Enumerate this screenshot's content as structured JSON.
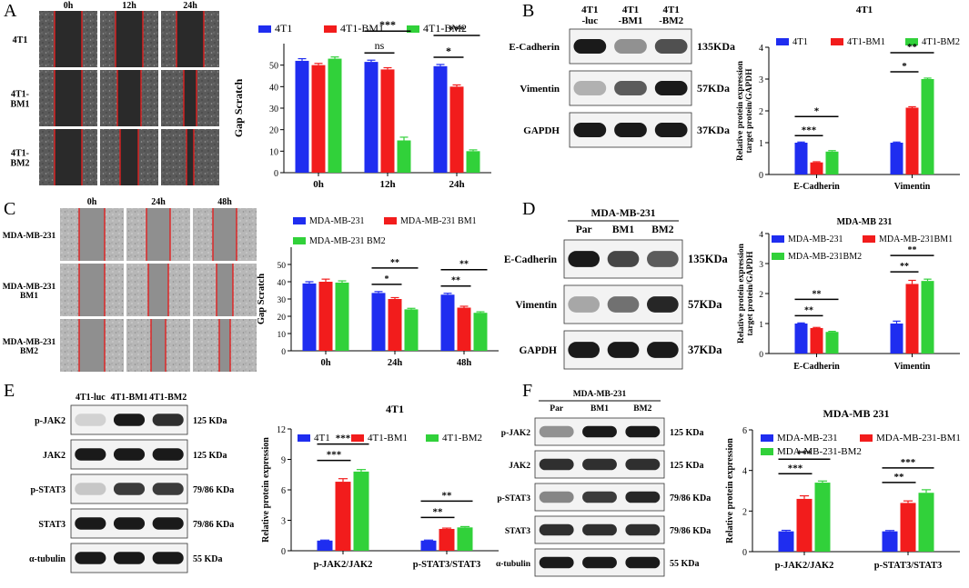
{
  "panel_letters": [
    "A",
    "B",
    "C",
    "D",
    "E",
    "F"
  ],
  "colors": {
    "blue": "#1f2df0",
    "red": "#f21c1c",
    "green": "#31d13a",
    "lane_line": "#e02020",
    "band": "#1a1a1a",
    "membrane_bg": "#f3f3f3"
  },
  "scratch_A": {
    "cols": [
      "0h",
      "12h",
      "24h"
    ],
    "rows": [
      "4T1",
      "4T1-\nBM1",
      "4T1-\nBM2"
    ]
  },
  "scratch_C": {
    "cols": [
      "0h",
      "24h",
      "48h"
    ],
    "rows": [
      "MDA-MB-231",
      "MDA-MB-231\nBM1",
      "MDA-MB-231\nBM2"
    ]
  },
  "blot_B": {
    "headers": [
      "4T1\n-luc",
      "4T1\n-BM1",
      "4T1\n-BM2"
    ],
    "rows": [
      {
        "label": "E-Cadherin",
        "kda": "135KDa",
        "bands": [
          1.0,
          0.45,
          0.75
        ]
      },
      {
        "label": "Vimentin",
        "kda": "57KDa",
        "bands": [
          0.3,
          0.7,
          1.0
        ]
      },
      {
        "label": "GAPDH",
        "kda": "37KDa",
        "bands": [
          1.0,
          1.0,
          1.0
        ]
      }
    ]
  },
  "blot_D": {
    "group_title": "MDA-MB-231",
    "headers": [
      "Par",
      "BM1",
      "BM2"
    ],
    "rows": [
      {
        "label": "E-Cadherin",
        "kda": "135KDa",
        "bands": [
          1.0,
          0.8,
          0.7
        ]
      },
      {
        "label": "Vimentin",
        "kda": "57KDa",
        "bands": [
          0.35,
          0.6,
          0.95
        ]
      },
      {
        "label": "GAPDH",
        "kda": "37KDa",
        "bands": [
          1.0,
          1.0,
          1.0
        ]
      }
    ]
  },
  "blot_E": {
    "headers": [
      "4T1-luc",
      "4T1-BM1",
      "4T1-BM2"
    ],
    "rows": [
      {
        "label": "p-JAK2",
        "kda": "125 KDa",
        "bands": [
          0.15,
          1.0,
          0.9
        ]
      },
      {
        "label": "JAK2",
        "kda": "125 KDa",
        "bands": [
          1.0,
          1.0,
          1.0
        ]
      },
      {
        "label": "p-STAT3",
        "kda": "79/86 KDa",
        "bands": [
          0.2,
          0.85,
          0.85
        ]
      },
      {
        "label": "STAT3",
        "kda": "79/86 KDa",
        "bands": [
          1.0,
          1.0,
          1.0
        ]
      },
      {
        "label": "α-tubulin",
        "kda": "55 KDa",
        "bands": [
          1.0,
          1.0,
          1.0
        ]
      }
    ]
  },
  "blot_F": {
    "group_title": "MDA-MB-231",
    "headers": [
      "Par",
      "BM1",
      "BM2"
    ],
    "rows": [
      {
        "label": "p-JAK2",
        "kda": "125 KDa",
        "bands": [
          0.45,
          1.0,
          1.0
        ]
      },
      {
        "label": "JAK2",
        "kda": "125 KDa",
        "bands": [
          0.9,
          0.9,
          0.9
        ]
      },
      {
        "label": "p-STAT3",
        "kda": "79/86 KDa",
        "bands": [
          0.5,
          0.85,
          0.95
        ]
      },
      {
        "label": "STAT3",
        "kda": "79/86 KDa",
        "bands": [
          0.9,
          0.9,
          0.9
        ]
      },
      {
        "label": "α-tubulin",
        "kda": "55 KDa",
        "bands": [
          1.0,
          1.0,
          1.0
        ]
      }
    ]
  },
  "chart_data": [
    {
      "id": "A",
      "type": "bar",
      "title": "",
      "xlabel": "",
      "ylabel": "Gap Scratch",
      "categories": [
        "0h",
        "12h",
        "24h"
      ],
      "ylim": [
        0,
        60
      ],
      "yticks": [
        0,
        10,
        20,
        30,
        40,
        50
      ],
      "legend_position": "top",
      "series": [
        {
          "name": "4T1",
          "color": "#1f2df0",
          "values": [
            52,
            51.5,
            49.5
          ],
          "err": [
            1,
            0.8,
            0.8
          ]
        },
        {
          "name": "4T1-BM1",
          "color": "#f21c1c",
          "values": [
            50,
            48,
            40
          ],
          "err": [
            0.8,
            0.8,
            0.8
          ]
        },
        {
          "name": "4T1-BM2",
          "color": "#31d13a",
          "values": [
            53,
            15,
            10
          ],
          "err": [
            0.8,
            1.5,
            0.6
          ]
        }
      ],
      "annotations": [
        {
          "cat": 1,
          "from": 0,
          "to": 1,
          "label": "ns",
          "level": 0
        },
        {
          "cat": 1,
          "from": 0,
          "to": 2,
          "label": "***",
          "level": 1
        },
        {
          "cat": 2,
          "from": 0,
          "to": 1,
          "label": "*",
          "level": 0
        },
        {
          "cat": 2,
          "from": 0,
          "to": 2,
          "label": "***",
          "level": 1
        }
      ]
    },
    {
      "id": "B",
      "type": "bar",
      "title": "4T1",
      "xlabel": "",
      "ylabel": "Relative protein expression\ntarget protein/GAPDH",
      "categories": [
        "E-Cadherin",
        "Vimentin"
      ],
      "ylim": [
        0,
        4
      ],
      "yticks": [
        0,
        1,
        2,
        3,
        4
      ],
      "legend_position": "top",
      "series": [
        {
          "name": "4T1",
          "color": "#1f2df0",
          "values": [
            1.0,
            1.0
          ],
          "err": [
            0.02,
            0.02
          ]
        },
        {
          "name": "4T1-BM1",
          "color": "#f21c1c",
          "values": [
            0.38,
            2.1
          ],
          "err": [
            0.02,
            0.03
          ]
        },
        {
          "name": "4T1-BM2",
          "color": "#31d13a",
          "values": [
            0.72,
            3.0
          ],
          "err": [
            0.03,
            0.03
          ]
        }
      ],
      "annotations": [
        {
          "cat": 0,
          "from": 0,
          "to": 1,
          "label": "***",
          "level": 0
        },
        {
          "cat": 0,
          "from": 0,
          "to": 2,
          "label": "*",
          "level": 1
        },
        {
          "cat": 1,
          "from": 0,
          "to": 1,
          "label": "*",
          "level": 0
        },
        {
          "cat": 1,
          "from": 0,
          "to": 2,
          "label": "**",
          "level": 1
        }
      ]
    },
    {
      "id": "C",
      "type": "bar",
      "title": "",
      "xlabel": "",
      "ylabel": "Gap Scratch",
      "categories": [
        "0h",
        "24h",
        "48h"
      ],
      "ylim": [
        0,
        60
      ],
      "yticks": [
        0,
        10,
        20,
        30,
        40,
        50
      ],
      "legend_position": "top",
      "series": [
        {
          "name": "MDA-MB-231",
          "color": "#1f2df0",
          "values": [
            39,
            33.5,
            32.5
          ],
          "err": [
            1,
            0.8,
            0.8
          ]
        },
        {
          "name": "MDA-MB-231 BM1",
          "color": "#f21c1c",
          "values": [
            40,
            30,
            25
          ],
          "err": [
            1.5,
            0.8,
            0.8
          ]
        },
        {
          "name": "MDA-MB-231 BM2",
          "color": "#31d13a",
          "values": [
            39.5,
            24,
            22
          ],
          "err": [
            1,
            0.6,
            0.6
          ]
        }
      ],
      "annotations": [
        {
          "cat": 1,
          "from": 0,
          "to": 1,
          "label": "*",
          "level": 0
        },
        {
          "cat": 1,
          "from": 0,
          "to": 2,
          "label": "**",
          "level": 1
        },
        {
          "cat": 2,
          "from": 0,
          "to": 1,
          "label": "**",
          "level": 0
        },
        {
          "cat": 2,
          "from": 0,
          "to": 2,
          "label": "**",
          "level": 1
        }
      ]
    },
    {
      "id": "D",
      "type": "bar",
      "title": "MDA-MB 231",
      "xlabel": "",
      "ylabel": "Relative protein expression\ntarget protein/GAPDH",
      "categories": [
        "E-Cadherin",
        "Vimentin"
      ],
      "ylim": [
        0,
        4
      ],
      "yticks": [
        0,
        1,
        2,
        3,
        4
      ],
      "legend_position": "top",
      "series": [
        {
          "name": "MDA-MB-231",
          "color": "#1f2df0",
          "values": [
            1.0,
            1.0
          ],
          "err": [
            0.02,
            0.08
          ]
        },
        {
          "name": "MDA-MB-231BM1",
          "color": "#f21c1c",
          "values": [
            0.85,
            2.32
          ],
          "err": [
            0.02,
            0.12
          ]
        },
        {
          "name": "MDA-MB-231BM2",
          "color": "#31d13a",
          "values": [
            0.72,
            2.42
          ],
          "err": [
            0.02,
            0.06
          ]
        }
      ],
      "annotations": [
        {
          "cat": 0,
          "from": 0,
          "to": 1,
          "label": "**",
          "level": 0
        },
        {
          "cat": 0,
          "from": 0,
          "to": 2,
          "label": "**",
          "level": 1
        },
        {
          "cat": 1,
          "from": 0,
          "to": 1,
          "label": "**",
          "level": 0
        },
        {
          "cat": 1,
          "from": 0,
          "to": 2,
          "label": "**",
          "level": 1
        }
      ]
    },
    {
      "id": "E",
      "type": "bar",
      "title": "4T1",
      "xlabel": "",
      "ylabel": "Relative protein expression",
      "categories": [
        "p-JAK2/JAK2",
        "p-STAT3/STAT3"
      ],
      "ylim": [
        0,
        12
      ],
      "yticks": [
        0,
        3,
        6,
        9,
        12
      ],
      "legend_position": "top",
      "series": [
        {
          "name": "4T1",
          "color": "#1f2df0",
          "values": [
            1.0,
            1.0
          ],
          "err": [
            0.05,
            0.05
          ]
        },
        {
          "name": "4T1-BM1",
          "color": "#f21c1c",
          "values": [
            6.8,
            2.15
          ],
          "err": [
            0.3,
            0.08
          ]
        },
        {
          "name": "4T1-BM2",
          "color": "#31d13a",
          "values": [
            7.8,
            2.3
          ],
          "err": [
            0.2,
            0.08
          ]
        }
      ],
      "annotations": [
        {
          "cat": 0,
          "from": 0,
          "to": 1,
          "label": "***",
          "level": 0
        },
        {
          "cat": 0,
          "from": 0,
          "to": 2,
          "label": "***",
          "level": 1
        },
        {
          "cat": 1,
          "from": 0,
          "to": 1,
          "label": "**",
          "level": 0
        },
        {
          "cat": 1,
          "from": 0,
          "to": 2,
          "label": "**",
          "level": 1
        }
      ]
    },
    {
      "id": "F",
      "type": "bar",
      "title": "MDA-MB 231",
      "xlabel": "",
      "ylabel": "Relative protein expression",
      "categories": [
        "p-JAK2/JAK2",
        "p-STAT3/STAT3"
      ],
      "ylim": [
        0,
        6
      ],
      "yticks": [
        0,
        2,
        4,
        6
      ],
      "legend_position": "top",
      "series": [
        {
          "name": "MDA-MB-231",
          "color": "#1f2df0",
          "values": [
            1.0,
            1.0
          ],
          "err": [
            0.05,
            0.04
          ]
        },
        {
          "name": "MDA-MB-231-BM1",
          "color": "#f21c1c",
          "values": [
            2.6,
            2.4
          ],
          "err": [
            0.15,
            0.1
          ]
        },
        {
          "name": "MDA-MB-231-BM2",
          "color": "#31d13a",
          "values": [
            3.4,
            2.9
          ],
          "err": [
            0.08,
            0.15
          ]
        }
      ],
      "annotations": [
        {
          "cat": 0,
          "from": 0,
          "to": 1,
          "label": "***",
          "level": 0
        },
        {
          "cat": 0,
          "from": 0,
          "to": 2,
          "label": "***",
          "level": 1
        },
        {
          "cat": 1,
          "from": 0,
          "to": 1,
          "label": "**",
          "level": 0
        },
        {
          "cat": 1,
          "from": 0,
          "to": 2,
          "label": "***",
          "level": 1
        }
      ]
    }
  ]
}
